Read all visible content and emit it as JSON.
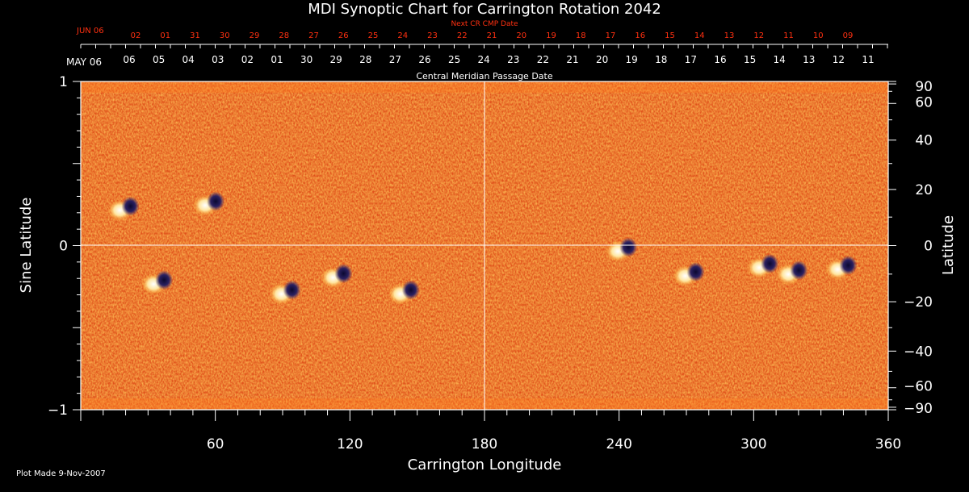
{
  "chart_data": {
    "type": "heatmap",
    "title": "MDI Synoptic Chart for Carrington Rotation 2042",
    "xlabel": "Carrington Longitude",
    "ylabel_left": "Sine Latitude",
    "ylabel_right": "Latitude",
    "xlim": [
      0,
      360
    ],
    "ylim_sine": [
      -1,
      1
    ],
    "x_ticks": [
      60,
      120,
      180,
      240,
      300,
      360
    ],
    "y_left_ticks": [
      {
        "value": 1,
        "label": "1"
      },
      {
        "value": 0,
        "label": "0"
      },
      {
        "value": -1,
        "label": "−1"
      }
    ],
    "y_right_ticks": [
      90,
      60,
      40,
      20,
      0,
      -20,
      -40,
      -60,
      -90
    ],
    "grid_lines": {
      "longitude": 180,
      "sine_latitude": 0
    },
    "top_axis": {
      "label": "Central Meridian Passage Date",
      "month_label": "MAY 06",
      "dates": [
        "06",
        "05",
        "04",
        "03",
        "02",
        "01",
        "30",
        "29",
        "28",
        "27",
        "26",
        "25",
        "24",
        "23",
        "22",
        "21",
        "20",
        "19",
        "18",
        "17",
        "16",
        "15",
        "14",
        "13",
        "12",
        "11"
      ]
    },
    "next_axis": {
      "label": "Next CR CMP Date",
      "month_label": "JUN 06",
      "dates": [
        "02",
        "01",
        "31",
        "30",
        "29",
        "28",
        "27",
        "26",
        "25",
        "24",
        "23",
        "22",
        "21",
        "20",
        "19",
        "18",
        "17",
        "16",
        "15",
        "14",
        "13",
        "12",
        "11",
        "10",
        "09"
      ]
    },
    "active_regions": [
      {
        "lon": 20,
        "sinlat": 0.23
      },
      {
        "lon": 58,
        "sinlat": 0.26
      },
      {
        "lon": 35,
        "sinlat": -0.22
      },
      {
        "lon": 92,
        "sinlat": -0.28
      },
      {
        "lon": 115,
        "sinlat": -0.18
      },
      {
        "lon": 145,
        "sinlat": -0.28
      },
      {
        "lon": 242,
        "sinlat": -0.02
      },
      {
        "lon": 272,
        "sinlat": -0.17
      },
      {
        "lon": 305,
        "sinlat": -0.12
      },
      {
        "lon": 318,
        "sinlat": -0.16
      },
      {
        "lon": 340,
        "sinlat": -0.13
      }
    ],
    "colors": {
      "background": "#000000",
      "field": "#e0501a",
      "positive": "#ffffff",
      "negative": "#1a1650",
      "axis": "#ffffff",
      "next_axis": "#ff3010"
    }
  },
  "footer": {
    "plot_made": "Plot Made  9-Nov-2007"
  }
}
